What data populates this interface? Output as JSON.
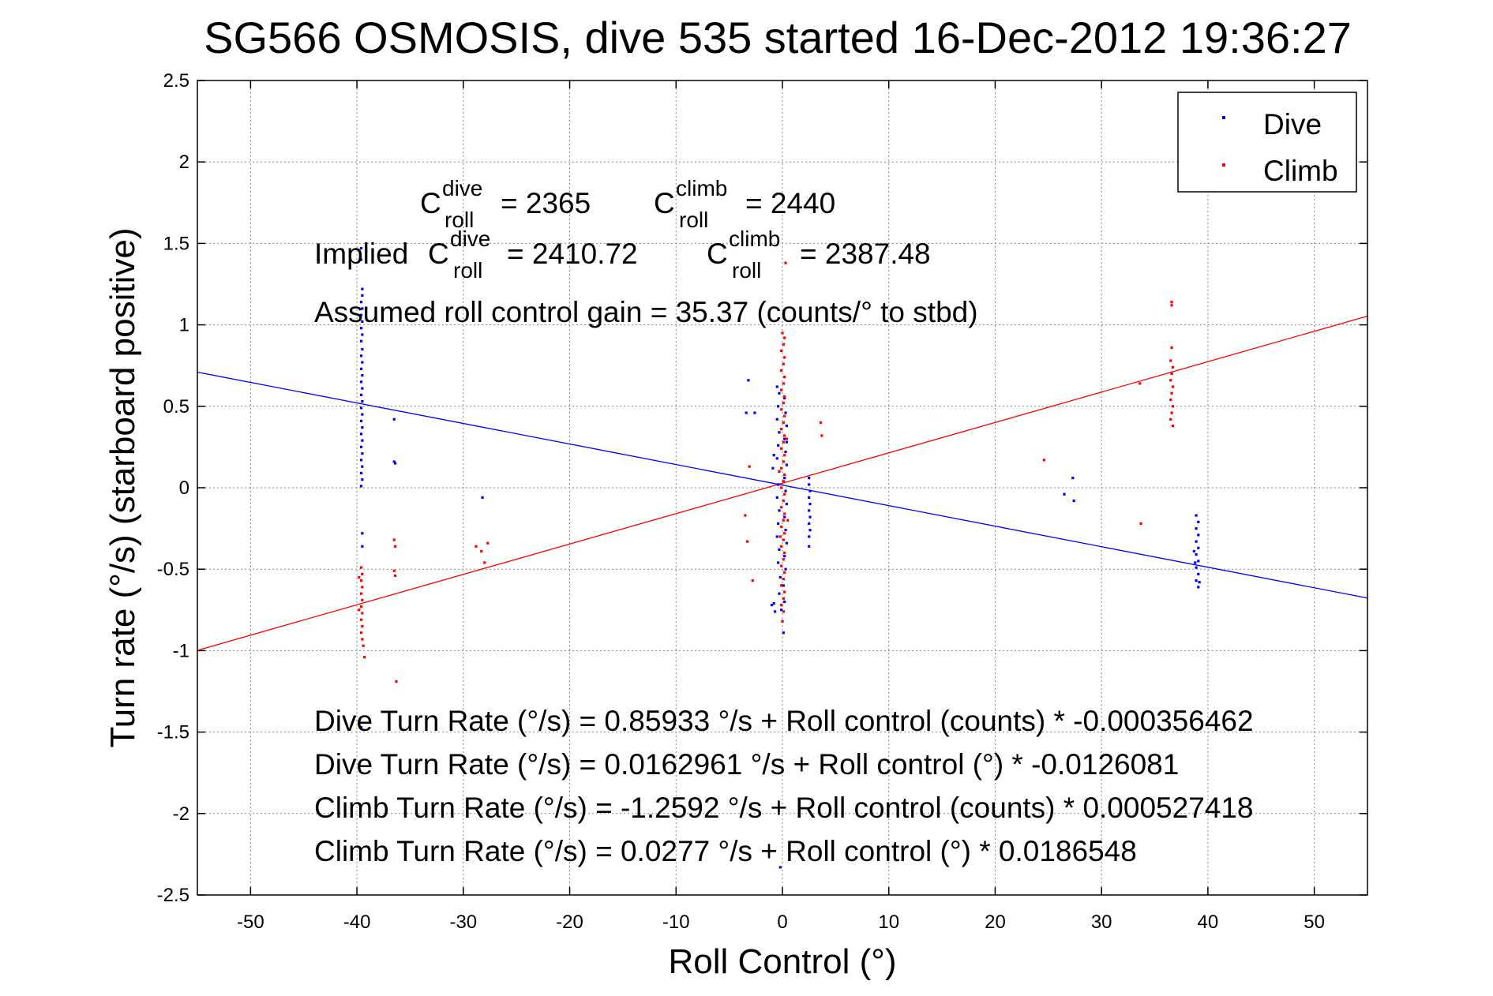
{
  "colors": {
    "dive": "#0000ff",
    "climb": "#ff0000",
    "grid": "#888888",
    "axes": "#000000"
  },
  "chart_data": {
    "type": "scatter",
    "title": "SG566 OSMOSIS, dive 535 started 16-Dec-2012 19:36:27",
    "xlabel": "Roll Control (°)",
    "ylabel": "Turn rate (°/s) (starboard positive)",
    "xlim": [
      -55,
      55
    ],
    "ylim": [
      -2.5,
      2.5
    ],
    "xticks": [
      -50,
      -40,
      -30,
      -20,
      -10,
      0,
      10,
      20,
      30,
      40,
      50
    ],
    "yticks": [
      -2.5,
      -2,
      -1.5,
      -1,
      -0.5,
      0,
      0.5,
      1,
      1.5,
      2,
      2.5
    ],
    "grid": true,
    "legend": {
      "placement": "top-right",
      "entries": [
        "Dive",
        "Climb"
      ]
    },
    "annotations": {
      "c_roll_dive": {
        "prefix": "C",
        "sup": "dive",
        "sub": "roll",
        "value": "= 2365"
      },
      "c_roll_climb": {
        "prefix": "C",
        "sup": "climb",
        "sub": "roll",
        "value": "= 2440"
      },
      "implied_label": "Implied",
      "implied_dive": {
        "prefix": "C",
        "sup": "dive",
        "sub": "roll",
        "value": "= 2410.72"
      },
      "implied_climb": {
        "prefix": "C",
        "sup": "climb",
        "sub": "roll",
        "value": "= 2387.48"
      },
      "gain": "Assumed roll control gain = 35.37 (counts/° to stbd)",
      "eq1": "Dive Turn Rate (°/s) = 0.85933 °/s + Roll control (counts) * -0.000356462",
      "eq2": "Dive Turn Rate (°/s) = 0.0162961 °/s + Roll control (°) * -0.0126081",
      "eq3": "Climb Turn Rate (°/s) = -1.2592 °/s + Roll control (counts) * 0.000527418",
      "eq4": "Climb Turn Rate (°/s) = 0.0277 °/s + Roll control (°) * 0.0186548"
    },
    "fits": [
      {
        "name": "Dive",
        "intercept": 0.0162961,
        "slope": -0.0126081
      },
      {
        "name": "Climb",
        "intercept": 0.0277,
        "slope": 0.0186548
      }
    ],
    "series": [
      {
        "name": "Dive",
        "points": [
          [
            -39.6,
            1.47
          ],
          [
            -39.6,
            1.4
          ],
          [
            -39.5,
            1.22
          ],
          [
            -39.5,
            1.18
          ],
          [
            -39.6,
            1.14
          ],
          [
            -39.5,
            1.1
          ],
          [
            -39.6,
            1.06
          ],
          [
            -39.5,
            1.02
          ],
          [
            -39.6,
            0.98
          ],
          [
            -39.5,
            0.94
          ],
          [
            -39.6,
            0.9
          ],
          [
            -39.5,
            0.85
          ],
          [
            -39.6,
            0.81
          ],
          [
            -39.5,
            0.77
          ],
          [
            -39.6,
            0.73
          ],
          [
            -39.5,
            0.69
          ],
          [
            -39.6,
            0.65
          ],
          [
            -39.5,
            0.61
          ],
          [
            -39.6,
            0.57
          ],
          [
            -39.5,
            0.53
          ],
          [
            -39.6,
            0.49
          ],
          [
            -39.5,
            0.45
          ],
          [
            -39.6,
            0.41
          ],
          [
            -39.5,
            0.37
          ],
          [
            -39.6,
            0.33
          ],
          [
            -39.5,
            0.29
          ],
          [
            -39.6,
            0.25
          ],
          [
            -39.5,
            0.21
          ],
          [
            -39.6,
            0.17
          ],
          [
            -39.5,
            0.13
          ],
          [
            -39.6,
            0.09
          ],
          [
            -39.5,
            0.05
          ],
          [
            -39.6,
            0.01
          ],
          [
            -39.5,
            -0.28
          ],
          [
            -39.5,
            -0.36
          ],
          [
            -39.6,
            -1.47
          ],
          [
            -36.5,
            0.42
          ],
          [
            -36.5,
            0.16
          ],
          [
            -36.4,
            0.15
          ],
          [
            -28.2,
            -0.06
          ],
          [
            -3.4,
            0.46
          ],
          [
            -2.6,
            0.46
          ],
          [
            -3.2,
            0.66
          ],
          [
            -0.5,
            0.62
          ],
          [
            -0.3,
            0.58
          ],
          [
            0.2,
            0.55
          ],
          [
            -0.4,
            0.5
          ],
          [
            0.3,
            0.46
          ],
          [
            -0.5,
            0.42
          ],
          [
            0.4,
            0.38
          ],
          [
            -0.3,
            0.34
          ],
          [
            0.2,
            0.3
          ],
          [
            -0.4,
            0.26
          ],
          [
            0.3,
            0.22
          ],
          [
            -0.5,
            0.18
          ],
          [
            0.4,
            0.14
          ],
          [
            -0.3,
            0.1
          ],
          [
            0.2,
            0.06
          ],
          [
            -0.4,
            0.02
          ],
          [
            0.3,
            -0.02
          ],
          [
            -0.5,
            -0.06
          ],
          [
            0.4,
            -0.1
          ],
          [
            -0.3,
            -0.14
          ],
          [
            0.2,
            -0.18
          ],
          [
            -0.4,
            -0.22
          ],
          [
            0.3,
            -0.26
          ],
          [
            -0.5,
            -0.3
          ],
          [
            0.4,
            -0.34
          ],
          [
            -0.3,
            -0.38
          ],
          [
            0.2,
            -0.42
          ],
          [
            -0.4,
            -0.46
          ],
          [
            0.3,
            -0.5
          ],
          [
            -0.2,
            -0.55
          ],
          [
            0.1,
            -0.6
          ],
          [
            -0.3,
            -0.65
          ],
          [
            0.2,
            -0.7
          ],
          [
            -0.1,
            -0.75
          ],
          [
            0.0,
            -0.82
          ],
          [
            0.1,
            -0.89
          ],
          [
            -0.8,
            -0.71
          ],
          [
            -0.7,
            -0.76
          ],
          [
            -1.0,
            -0.72
          ],
          [
            0.4,
            0.28
          ],
          [
            -0.8,
            0.2
          ],
          [
            -0.9,
            0.12
          ],
          [
            -0.2,
            -2.33
          ],
          [
            2.5,
            0.06
          ],
          [
            2.5,
            0.02
          ],
          [
            2.6,
            -0.02
          ],
          [
            2.5,
            -0.06
          ],
          [
            2.6,
            -0.1
          ],
          [
            2.5,
            -0.14
          ],
          [
            2.6,
            -0.18
          ],
          [
            2.5,
            -0.22
          ],
          [
            2.6,
            -0.26
          ],
          [
            2.5,
            -0.3
          ],
          [
            2.5,
            -0.36
          ],
          [
            26.5,
            -0.04
          ],
          [
            27.3,
            0.06
          ],
          [
            27.4,
            -0.08
          ],
          [
            38.9,
            -0.17
          ],
          [
            39.1,
            -0.21
          ],
          [
            38.9,
            -0.25
          ],
          [
            39.1,
            -0.29
          ],
          [
            38.9,
            -0.33
          ],
          [
            39.1,
            -0.37
          ],
          [
            38.9,
            -0.41
          ],
          [
            39.1,
            -0.45
          ],
          [
            38.9,
            -0.49
          ],
          [
            39.1,
            -0.53
          ],
          [
            38.9,
            -0.57
          ],
          [
            39.1,
            -0.61
          ],
          [
            38.7,
            -0.39
          ],
          [
            38.8,
            -0.46
          ],
          [
            39.2,
            -0.58
          ]
        ]
      },
      {
        "name": "Climb",
        "points": [
          [
            -39.6,
            -0.49
          ],
          [
            -39.5,
            -0.53
          ],
          [
            -39.6,
            -0.57
          ],
          [
            -39.5,
            -0.61
          ],
          [
            -39.6,
            -0.65
          ],
          [
            -39.5,
            -0.69
          ],
          [
            -39.6,
            -0.73
          ],
          [
            -39.5,
            -0.77
          ],
          [
            -39.6,
            -0.81
          ],
          [
            -39.5,
            -0.85
          ],
          [
            -39.6,
            -0.89
          ],
          [
            -39.5,
            -0.93
          ],
          [
            -39.4,
            -0.97
          ],
          [
            -39.3,
            -1.04
          ],
          [
            -39.8,
            -0.55
          ],
          [
            -39.8,
            -0.75
          ],
          [
            -36.5,
            -0.32
          ],
          [
            -36.4,
            -0.36
          ],
          [
            -36.5,
            -0.51
          ],
          [
            -36.4,
            -0.54
          ],
          [
            -36.3,
            -1.19
          ],
          [
            -28.8,
            -0.36
          ],
          [
            -28.3,
            -0.39
          ],
          [
            -28.0,
            -0.46
          ],
          [
            -27.7,
            -0.34
          ],
          [
            -3.5,
            -0.17
          ],
          [
            -3.3,
            -0.33
          ],
          [
            -3.1,
            0.13
          ],
          [
            -2.8,
            -0.57
          ],
          [
            0.3,
            1.38
          ],
          [
            0.0,
            0.95
          ],
          [
            0.2,
            0.92
          ],
          [
            0.1,
            0.88
          ],
          [
            -0.1,
            0.84
          ],
          [
            0.2,
            0.8
          ],
          [
            0.1,
            0.76
          ],
          [
            -0.1,
            0.72
          ],
          [
            0.2,
            0.68
          ],
          [
            0.1,
            0.64
          ],
          [
            -0.1,
            0.6
          ],
          [
            0.2,
            0.56
          ],
          [
            0.1,
            0.52
          ],
          [
            -0.1,
            0.48
          ],
          [
            0.2,
            0.44
          ],
          [
            0.1,
            0.4
          ],
          [
            -0.1,
            0.36
          ],
          [
            0.2,
            0.32
          ],
          [
            0.1,
            0.28
          ],
          [
            -0.1,
            0.24
          ],
          [
            0.2,
            0.2
          ],
          [
            0.1,
            0.16
          ],
          [
            -0.1,
            0.12
          ],
          [
            0.2,
            0.08
          ],
          [
            0.1,
            0.04
          ],
          [
            -0.1,
            0.0
          ],
          [
            0.2,
            -0.04
          ],
          [
            0.1,
            -0.08
          ],
          [
            -0.1,
            -0.12
          ],
          [
            0.2,
            -0.16
          ],
          [
            0.1,
            -0.2
          ],
          [
            -0.1,
            -0.24
          ],
          [
            0.2,
            -0.28
          ],
          [
            0.1,
            -0.32
          ],
          [
            -0.1,
            -0.36
          ],
          [
            0.2,
            -0.4
          ],
          [
            0.1,
            -0.44
          ],
          [
            -0.1,
            -0.48
          ],
          [
            0.2,
            -0.52
          ],
          [
            0.1,
            -0.56
          ],
          [
            -0.1,
            -0.6
          ],
          [
            0.2,
            -0.64
          ],
          [
            0.1,
            -0.68
          ],
          [
            -0.1,
            -0.72
          ],
          [
            0.1,
            -0.76
          ],
          [
            0.0,
            -0.82
          ],
          [
            -0.3,
            0.1
          ],
          [
            0.5,
            -0.2
          ],
          [
            0.4,
            0.3
          ],
          [
            -0.2,
            -0.3
          ],
          [
            3.6,
            0.4
          ],
          [
            3.7,
            0.32
          ],
          [
            24.6,
            0.17
          ],
          [
            33.6,
            0.64
          ],
          [
            33.7,
            -0.22
          ],
          [
            36.6,
            1.14
          ],
          [
            36.6,
            1.12
          ],
          [
            36.6,
            0.86
          ],
          [
            36.5,
            0.78
          ],
          [
            36.7,
            0.74
          ],
          [
            36.6,
            0.7
          ],
          [
            36.5,
            0.66
          ],
          [
            36.7,
            0.62
          ],
          [
            36.6,
            0.58
          ],
          [
            36.5,
            0.54
          ],
          [
            36.7,
            0.5
          ],
          [
            36.6,
            0.46
          ],
          [
            36.5,
            0.42
          ],
          [
            36.7,
            0.38
          ]
        ]
      }
    ]
  }
}
